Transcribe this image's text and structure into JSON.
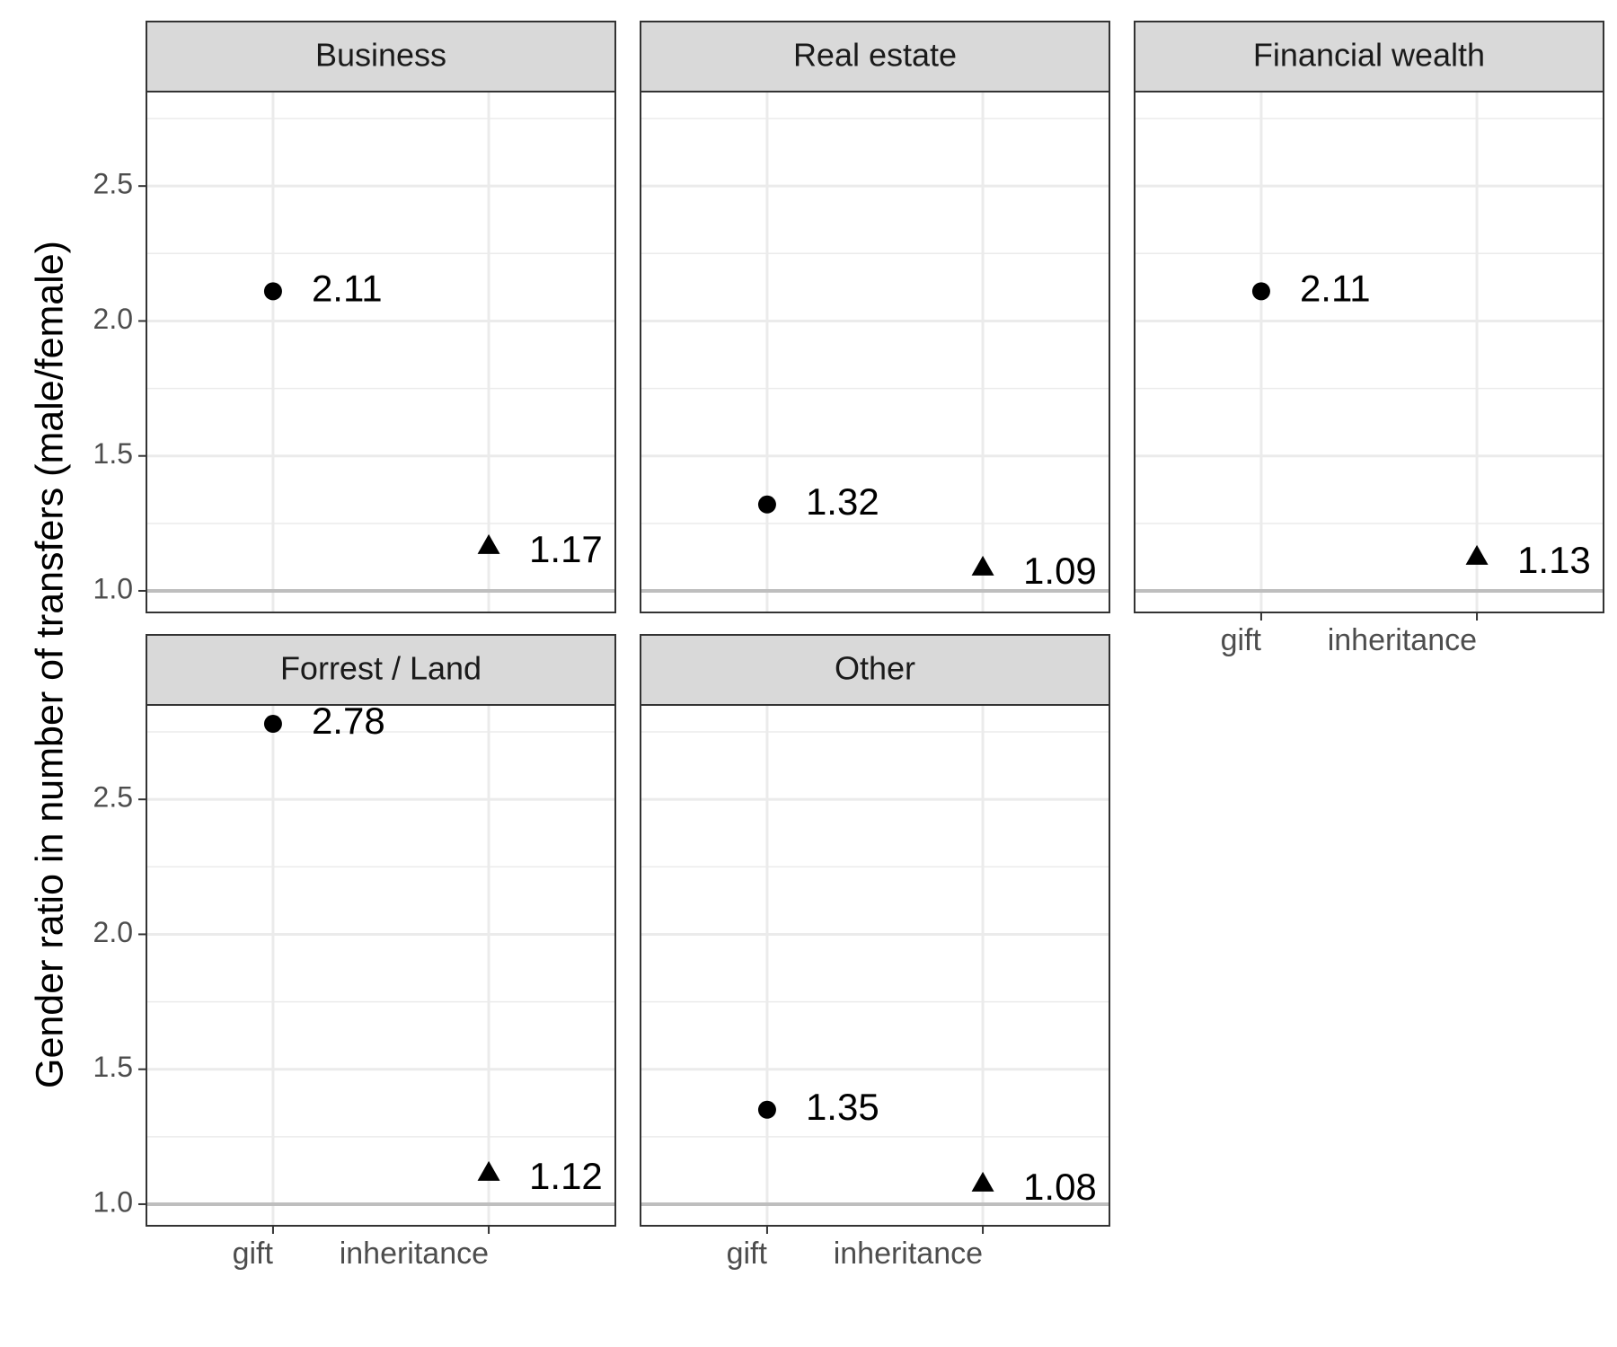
{
  "chart_data": {
    "type": "scatter",
    "ylabel": "Gender ratio in number of transfers (male/female)",
    "xlabel": "",
    "categories": [
      "gift",
      "inheritance"
    ],
    "y_ticks": [
      "1.0",
      "1.5",
      "2.0",
      "2.5"
    ],
    "ylim": [
      0.92,
      2.85
    ],
    "reference_line": 1.0,
    "grid": true,
    "colors": {
      "points": "#000000",
      "strip_fill": "#d9d9d9",
      "grid": "#ebebeb",
      "reference": "#bebebe",
      "tick_text": "#4d4d4d"
    },
    "panels": [
      {
        "title": "Business",
        "values": [
          2.11,
          1.17
        ],
        "labels": [
          "2.11",
          "1.17"
        ]
      },
      {
        "title": "Real estate",
        "values": [
          1.32,
          1.09
        ],
        "labels": [
          "1.32",
          "1.09"
        ]
      },
      {
        "title": "Financial wealth",
        "values": [
          2.11,
          1.13
        ],
        "labels": [
          "2.11",
          "1.13"
        ]
      },
      {
        "title": "Forrest / Land",
        "values": [
          2.78,
          1.12
        ],
        "labels": [
          "2.78",
          "1.12"
        ]
      },
      {
        "title": "Other",
        "values": [
          1.35,
          1.08
        ],
        "labels": [
          "1.35",
          "1.08"
        ]
      }
    ]
  }
}
